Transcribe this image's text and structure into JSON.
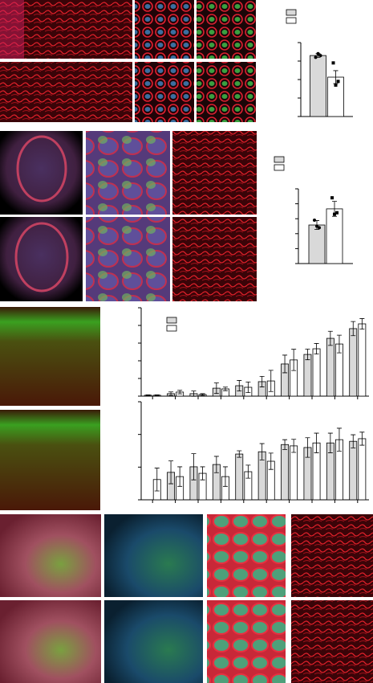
{
  "chart_data": [
    {
      "type": "bar",
      "ylim": [
        0,
        4
      ],
      "yticks": [
        0,
        1,
        2,
        3,
        4
      ],
      "series": [
        {
          "color": "#d9d9d9",
          "values": [
            3.3
          ],
          "errors": [
            0.1
          ],
          "points": [
            [
              3.2,
              3.4,
              3.3
            ]
          ]
        },
        {
          "color": "#ffffff",
          "values": [
            2.13
          ],
          "errors": [
            0.35
          ],
          "points": [
            [
              2.9,
              1.7,
              1.9
            ]
          ]
        }
      ]
    },
    {
      "type": "bar",
      "ylim": [
        0,
        5
      ],
      "yticks": [
        0,
        1,
        2,
        3,
        4,
        5
      ],
      "series": [
        {
          "color": "#d9d9d9",
          "values": [
            2.58
          ],
          "errors": [
            0.3
          ],
          "points": [
            [
              2.9,
              2.5,
              2.4
            ]
          ]
        },
        {
          "color": "#ffffff",
          "values": [
            3.66
          ],
          "errors": [
            0.5
          ],
          "points": [
            [
              4.4,
              3.3,
              3.4
            ]
          ]
        }
      ]
    },
    {
      "type": "bar",
      "ylim": [
        0,
        5
      ],
      "yticks": [
        0,
        1,
        2,
        3,
        4,
        5
      ],
      "categories": [
        null,
        null,
        null,
        null,
        null,
        null,
        null,
        null,
        null,
        null
      ],
      "series": [
        {
          "color": "#d9d9d9",
          "values": [
            0.05,
            0.14,
            0.14,
            0.45,
            0.59,
            0.82,
            1.82,
            2.36,
            3.27,
            3.82
          ],
          "errors": [
            0.02,
            0.1,
            0.15,
            0.3,
            0.3,
            0.3,
            0.5,
            0.3,
            0.4,
            0.4
          ]
        },
        {
          "color": "#ffffff",
          "values": [
            0.05,
            0.23,
            0.09,
            0.41,
            0.5,
            0.86,
            2.05,
            2.68,
            2.95,
            4.09
          ],
          "errors": [
            0.02,
            0.1,
            0.05,
            0.1,
            0.3,
            0.6,
            0.6,
            0.3,
            0.5,
            0.3
          ]
        }
      ]
    },
    {
      "type": "bar",
      "ylim": [
        0,
        3
      ],
      "yticks": [
        0,
        1,
        2,
        3
      ],
      "categories": [
        null,
        null,
        null,
        null,
        null,
        null,
        null,
        null,
        null,
        null
      ],
      "series": [
        {
          "color": "#d9d9d9",
          "values": [
            null,
            0.84,
            1.01,
            1.08,
            1.4,
            1.47,
            1.69,
            1.6,
            1.74,
            1.79
          ],
          "errors": [
            null,
            0.35,
            0.4,
            0.25,
            0.1,
            0.25,
            0.15,
            0.3,
            0.3,
            0.2
          ]
        },
        {
          "color": "#ffffff",
          "values": [
            0.62,
            0.71,
            0.81,
            0.71,
            0.86,
            1.18,
            1.65,
            1.74,
            1.84,
            1.87
          ],
          "errors": [
            0.35,
            0.3,
            0.2,
            0.3,
            0.2,
            0.25,
            0.2,
            0.3,
            0.35,
            0.2
          ]
        }
      ]
    }
  ]
}
